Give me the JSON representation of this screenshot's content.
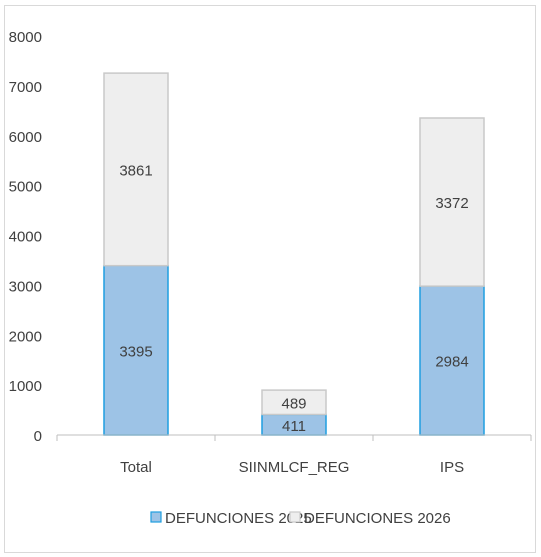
{
  "chart_data": {
    "type": "bar",
    "stacked": true,
    "title": "",
    "xlabel": "",
    "ylabel": "",
    "categories": [
      "Total",
      "SIINMLCF_REG",
      "IPS"
    ],
    "series": [
      {
        "name": "DEFUNCIONES 2025",
        "values": [
          3395,
          411,
          2984
        ],
        "color": "#9dc3e6",
        "border": "#1f9ee0"
      },
      {
        "name": "DEFUNCIONES 2026",
        "values": [
          3861,
          489,
          3372
        ],
        "color": "#eeeeee",
        "border": "#c9c9c9"
      }
    ],
    "ylim": [
      0,
      8000
    ],
    "yticks": [
      0,
      1000,
      2000,
      3000,
      4000,
      5000,
      6000,
      7000,
      8000
    ],
    "grid": false,
    "legend_position": "bottom"
  }
}
